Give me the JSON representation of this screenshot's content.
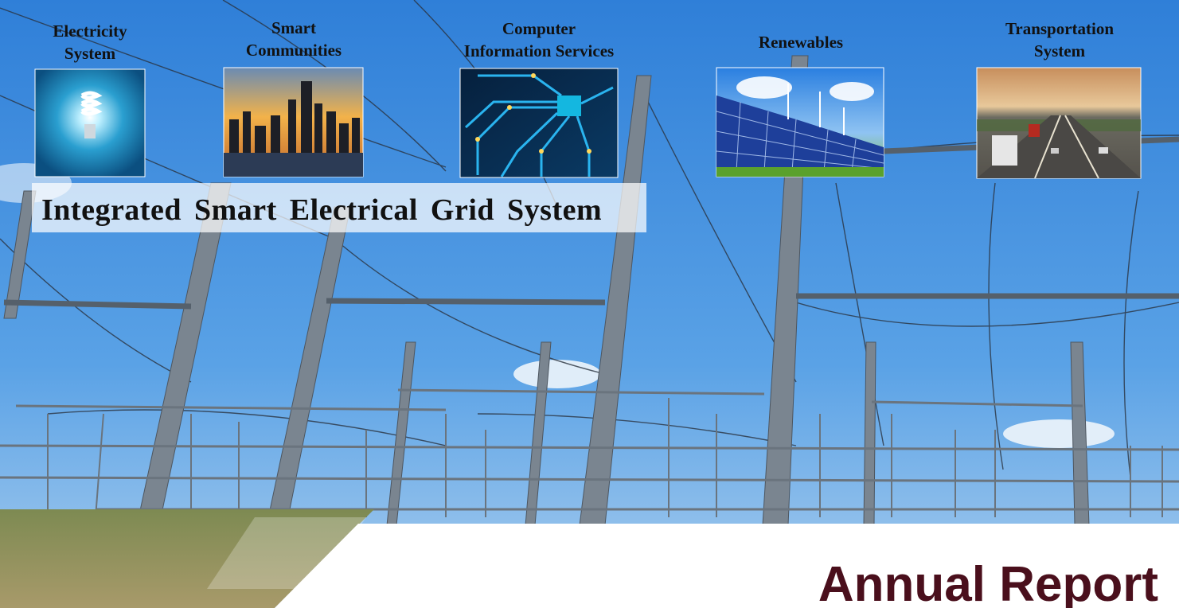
{
  "panels": [
    {
      "label": [
        "Electricity",
        "System"
      ]
    },
    {
      "label": [
        "Smart",
        "Communities"
      ]
    },
    {
      "label": [
        "Computer",
        "Information Services"
      ]
    },
    {
      "label": [
        "Renewables"
      ]
    },
    {
      "label": [
        "Transportation",
        "System"
      ]
    }
  ],
  "banner": {
    "title": "Integrated Smart Electrical Grid System"
  },
  "footer": {
    "title": "Annual Report"
  }
}
